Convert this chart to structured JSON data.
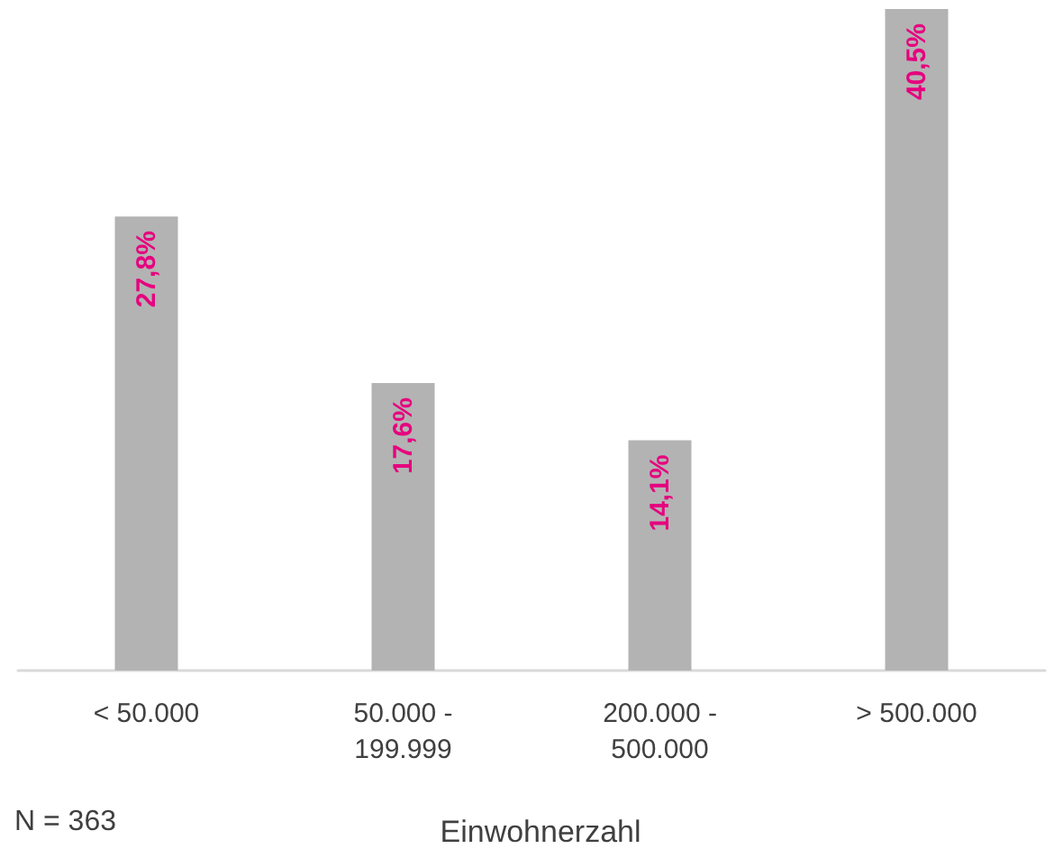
{
  "chart_data": {
    "type": "bar",
    "relative": false,
    "categories": [
      "< 50.000",
      "50.000 -\n199.999",
      "200.000 -\n500.000",
      "> 500.000"
    ],
    "values": [
      27.8,
      17.6,
      14.1,
      40.5
    ],
    "value_labels": [
      "27,8%",
      "17,6%",
      "14,1%",
      "40,5%"
    ],
    "color": "#b3b3b3",
    "xlabel": "Einwohnerzahl",
    "annotations": [
      "N = 363"
    ]
  }
}
